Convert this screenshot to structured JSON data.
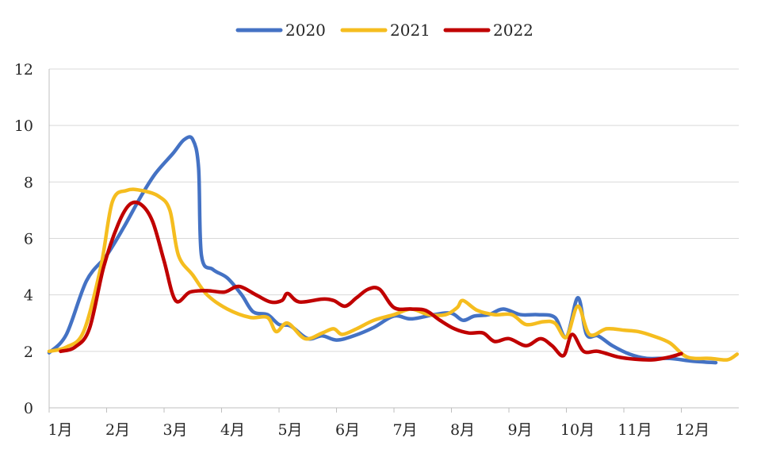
{
  "chart_data": {
    "type": "line",
    "title": "",
    "xlabel": "",
    "ylabel": "",
    "categories": [
      "1月",
      "2月",
      "3月",
      "4月",
      "5月",
      "6月",
      "7月",
      "8月",
      "9月",
      "10月",
      "11月",
      "12月"
    ],
    "ylim": [
      0,
      12
    ],
    "yticks": [
      0,
      2,
      4,
      6,
      8,
      10,
      12
    ],
    "grid": true,
    "legend_position": "top-center",
    "series": [
      {
        "name": "2020",
        "color": "#4472c4",
        "points": [
          [
            0.0,
            1.95
          ],
          [
            0.3,
            2.6
          ],
          [
            0.65,
            4.5
          ],
          [
            1.0,
            5.4
          ],
          [
            1.3,
            6.4
          ],
          [
            1.6,
            7.5
          ],
          [
            1.85,
            8.3
          ],
          [
            2.15,
            9.0
          ],
          [
            2.35,
            9.5
          ],
          [
            2.5,
            9.5
          ],
          [
            2.6,
            8.5
          ],
          [
            2.65,
            5.4
          ],
          [
            2.85,
            4.9
          ],
          [
            3.1,
            4.6
          ],
          [
            3.35,
            4.0
          ],
          [
            3.55,
            3.4
          ],
          [
            3.8,
            3.3
          ],
          [
            4.0,
            2.95
          ],
          [
            4.2,
            2.9
          ],
          [
            4.5,
            2.45
          ],
          [
            4.75,
            2.55
          ],
          [
            5.0,
            2.4
          ],
          [
            5.3,
            2.55
          ],
          [
            5.65,
            2.85
          ],
          [
            6.0,
            3.25
          ],
          [
            6.3,
            3.15
          ],
          [
            6.7,
            3.3
          ],
          [
            7.0,
            3.35
          ],
          [
            7.2,
            3.1
          ],
          [
            7.4,
            3.25
          ],
          [
            7.65,
            3.3
          ],
          [
            7.9,
            3.5
          ],
          [
            8.2,
            3.3
          ],
          [
            8.5,
            3.3
          ],
          [
            8.8,
            3.2
          ],
          [
            9.0,
            2.5
          ],
          [
            9.2,
            3.9
          ],
          [
            9.35,
            2.6
          ],
          [
            9.55,
            2.55
          ],
          [
            9.8,
            2.2
          ],
          [
            10.1,
            1.9
          ],
          [
            10.4,
            1.75
          ],
          [
            10.8,
            1.75
          ],
          [
            11.2,
            1.65
          ],
          [
            11.6,
            1.6
          ]
        ]
      },
      {
        "name": "2021",
        "color": "#f5bd1f",
        "points": [
          [
            0.0,
            2.0
          ],
          [
            0.3,
            2.15
          ],
          [
            0.6,
            2.7
          ],
          [
            0.9,
            5.0
          ],
          [
            1.1,
            7.3
          ],
          [
            1.35,
            7.7
          ],
          [
            1.6,
            7.7
          ],
          [
            1.9,
            7.5
          ],
          [
            2.1,
            7.0
          ],
          [
            2.25,
            5.4
          ],
          [
            2.5,
            4.7
          ],
          [
            2.75,
            4.0
          ],
          [
            3.1,
            3.5
          ],
          [
            3.5,
            3.2
          ],
          [
            3.8,
            3.2
          ],
          [
            3.95,
            2.7
          ],
          [
            4.15,
            3.0
          ],
          [
            4.45,
            2.45
          ],
          [
            4.75,
            2.65
          ],
          [
            4.95,
            2.8
          ],
          [
            5.1,
            2.6
          ],
          [
            5.35,
            2.8
          ],
          [
            5.65,
            3.1
          ],
          [
            6.0,
            3.3
          ],
          [
            6.3,
            3.5
          ],
          [
            6.6,
            3.3
          ],
          [
            6.9,
            3.3
          ],
          [
            7.1,
            3.55
          ],
          [
            7.2,
            3.8
          ],
          [
            7.45,
            3.45
          ],
          [
            7.75,
            3.3
          ],
          [
            8.05,
            3.3
          ],
          [
            8.3,
            2.95
          ],
          [
            8.6,
            3.05
          ],
          [
            8.8,
            3.0
          ],
          [
            9.0,
            2.5
          ],
          [
            9.2,
            3.6
          ],
          [
            9.4,
            2.6
          ],
          [
            9.7,
            2.8
          ],
          [
            10.0,
            2.75
          ],
          [
            10.25,
            2.7
          ],
          [
            10.5,
            2.55
          ],
          [
            10.8,
            2.3
          ],
          [
            11.1,
            1.8
          ],
          [
            11.5,
            1.75
          ],
          [
            11.8,
            1.7
          ],
          [
            11.97,
            1.9
          ]
        ]
      },
      {
        "name": "2022",
        "color": "#c00000",
        "points": [
          [
            0.2,
            2.0
          ],
          [
            0.45,
            2.15
          ],
          [
            0.7,
            2.8
          ],
          [
            0.95,
            5.0
          ],
          [
            1.2,
            6.5
          ],
          [
            1.4,
            7.2
          ],
          [
            1.6,
            7.2
          ],
          [
            1.8,
            6.6
          ],
          [
            2.0,
            5.2
          ],
          [
            2.2,
            3.8
          ],
          [
            2.45,
            4.1
          ],
          [
            2.75,
            4.15
          ],
          [
            3.05,
            4.1
          ],
          [
            3.3,
            4.3
          ],
          [
            3.6,
            4.0
          ],
          [
            3.85,
            3.75
          ],
          [
            4.05,
            3.8
          ],
          [
            4.15,
            4.05
          ],
          [
            4.35,
            3.75
          ],
          [
            4.75,
            3.85
          ],
          [
            4.95,
            3.8
          ],
          [
            5.15,
            3.6
          ],
          [
            5.35,
            3.9
          ],
          [
            5.55,
            4.2
          ],
          [
            5.75,
            4.2
          ],
          [
            6.0,
            3.55
          ],
          [
            6.3,
            3.5
          ],
          [
            6.55,
            3.45
          ],
          [
            6.8,
            3.1
          ],
          [
            7.05,
            2.8
          ],
          [
            7.3,
            2.65
          ],
          [
            7.55,
            2.65
          ],
          [
            7.75,
            2.35
          ],
          [
            8.0,
            2.45
          ],
          [
            8.3,
            2.2
          ],
          [
            8.55,
            2.45
          ],
          [
            8.75,
            2.2
          ],
          [
            8.95,
            1.85
          ],
          [
            9.1,
            2.6
          ],
          [
            9.3,
            2.0
          ],
          [
            9.55,
            2.0
          ],
          [
            9.9,
            1.8
          ],
          [
            10.2,
            1.72
          ],
          [
            10.5,
            1.7
          ],
          [
            10.8,
            1.8
          ],
          [
            11.0,
            1.92
          ]
        ]
      }
    ]
  }
}
